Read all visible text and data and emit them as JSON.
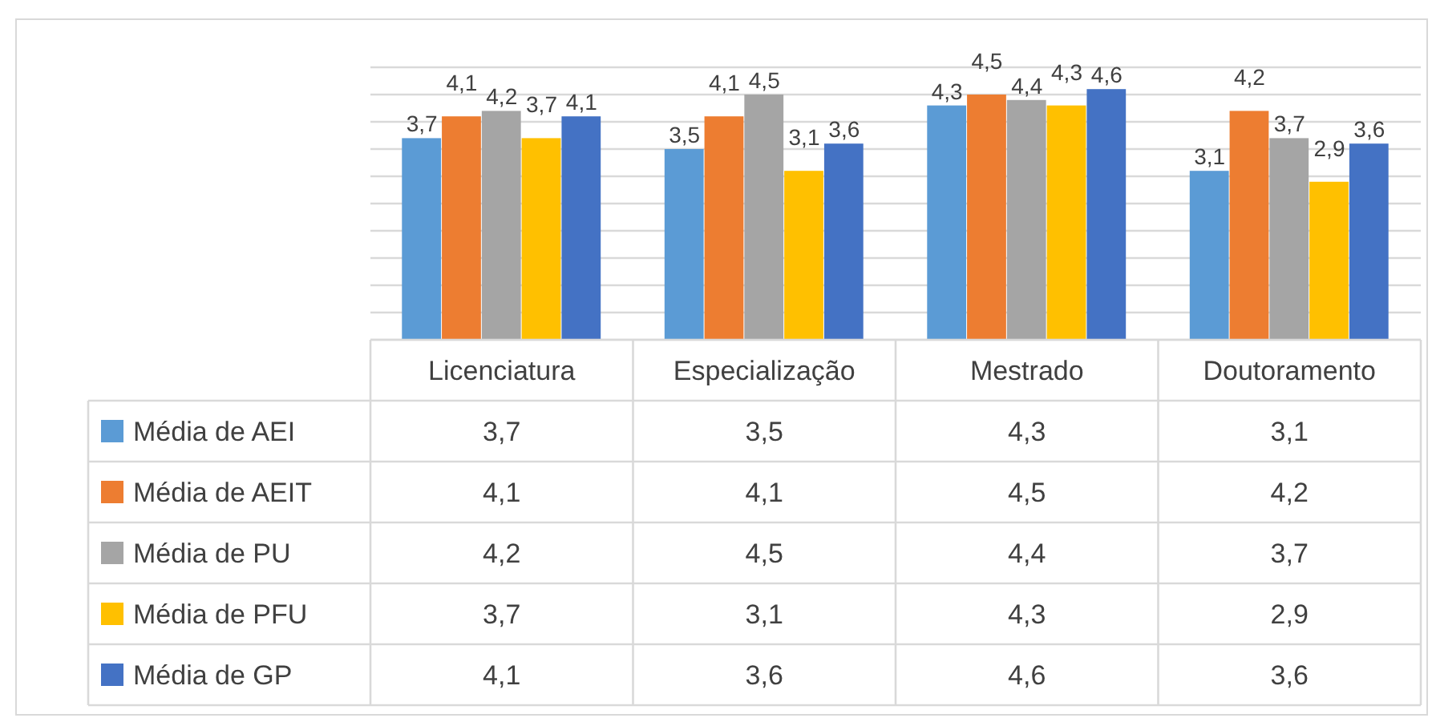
{
  "chart_data": {
    "type": "bar",
    "categories": [
      "Licenciatura",
      "Especialização",
      "Mestrado",
      "Doutoramento"
    ],
    "series": [
      {
        "name": "Média de AEI",
        "color": "#5b9bd5",
        "values": [
          3.7,
          3.5,
          4.3,
          3.1
        ],
        "value_labels": [
          "3,7",
          "3,5",
          "4,3",
          "3,1"
        ]
      },
      {
        "name": "Média de AEIT",
        "color": "#ed7d31",
        "values": [
          4.1,
          4.1,
          4.5,
          4.2
        ],
        "value_labels": [
          "4,1",
          "4,1",
          "4,5",
          "4,2"
        ]
      },
      {
        "name": "Média de PU",
        "color": "#a5a5a5",
        "values": [
          4.2,
          4.5,
          4.4,
          3.7
        ],
        "value_labels": [
          "4,2",
          "4,5",
          "4,4",
          "3,7"
        ]
      },
      {
        "name": "Média de PFU",
        "color": "#ffc000",
        "values": [
          3.7,
          3.1,
          4.3,
          2.9
        ],
        "value_labels": [
          "3,7",
          "3,1",
          "4,3",
          "2,9"
        ]
      },
      {
        "name": "Média de GP",
        "color": "#4472c4",
        "values": [
          4.1,
          3.6,
          4.6,
          3.6
        ],
        "value_labels": [
          "4,1",
          "3,6",
          "4,6",
          "3,6"
        ]
      }
    ],
    "ylim": [
      0,
      5
    ],
    "yticks": [
      {
        "value": 0,
        "label": null
      },
      {
        "value": 0.5,
        "label": null
      },
      {
        "value": 1,
        "label": null
      },
      {
        "value": 1.5,
        "label": null
      },
      {
        "value": 2,
        "label": null
      },
      {
        "value": 2.5,
        "label": null
      },
      {
        "value": 3,
        "label": null
      },
      {
        "value": 3.5,
        "label": null
      },
      {
        "value": 4,
        "label": null
      },
      {
        "value": 4.5,
        "label": null
      },
      {
        "value": 5,
        "label": null
      }
    ],
    "grid": "y",
    "tick_labels": "x",
    "legend": "bottom left"
  }
}
